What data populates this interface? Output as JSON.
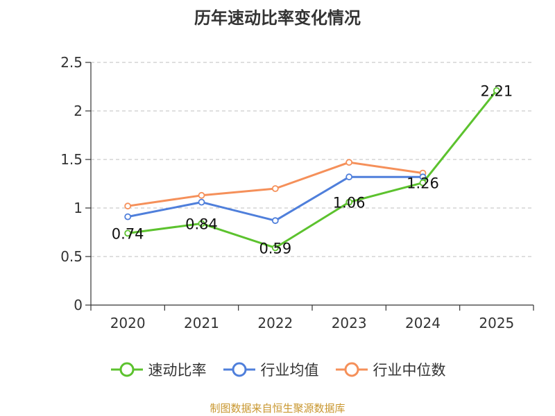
{
  "chart_data": {
    "type": "line",
    "title": "历年速动比率变化情况",
    "categories": [
      "2020",
      "2021",
      "2022",
      "2023",
      "2024",
      "2025"
    ],
    "ylim": [
      0,
      2.5
    ],
    "yticks": [
      "0",
      "0.5",
      "1",
      "1.5",
      "2",
      "2.5"
    ],
    "xlabel": "",
    "ylabel": "",
    "grid": true,
    "legend_position": "bottom",
    "series": [
      {
        "name": "速动比率",
        "color": "#5cc22e",
        "values": [
          0.74,
          0.84,
          0.59,
          1.06,
          1.26,
          2.21
        ],
        "labels": [
          "0.74",
          "0.84",
          "0.59",
          "1.06",
          "1.26",
          "2.21"
        ]
      },
      {
        "name": "行业均值",
        "color": "#4f7fdb",
        "values": [
          0.91,
          1.06,
          0.87,
          1.32,
          1.32,
          null
        ]
      },
      {
        "name": "行业中位数",
        "color": "#f5905a",
        "values": [
          1.02,
          1.13,
          1.2,
          1.47,
          1.36,
          null
        ]
      }
    ]
  },
  "source_note": {
    "text": "制图数据来自恒生聚源数据库",
    "color": "#c8962e"
  }
}
